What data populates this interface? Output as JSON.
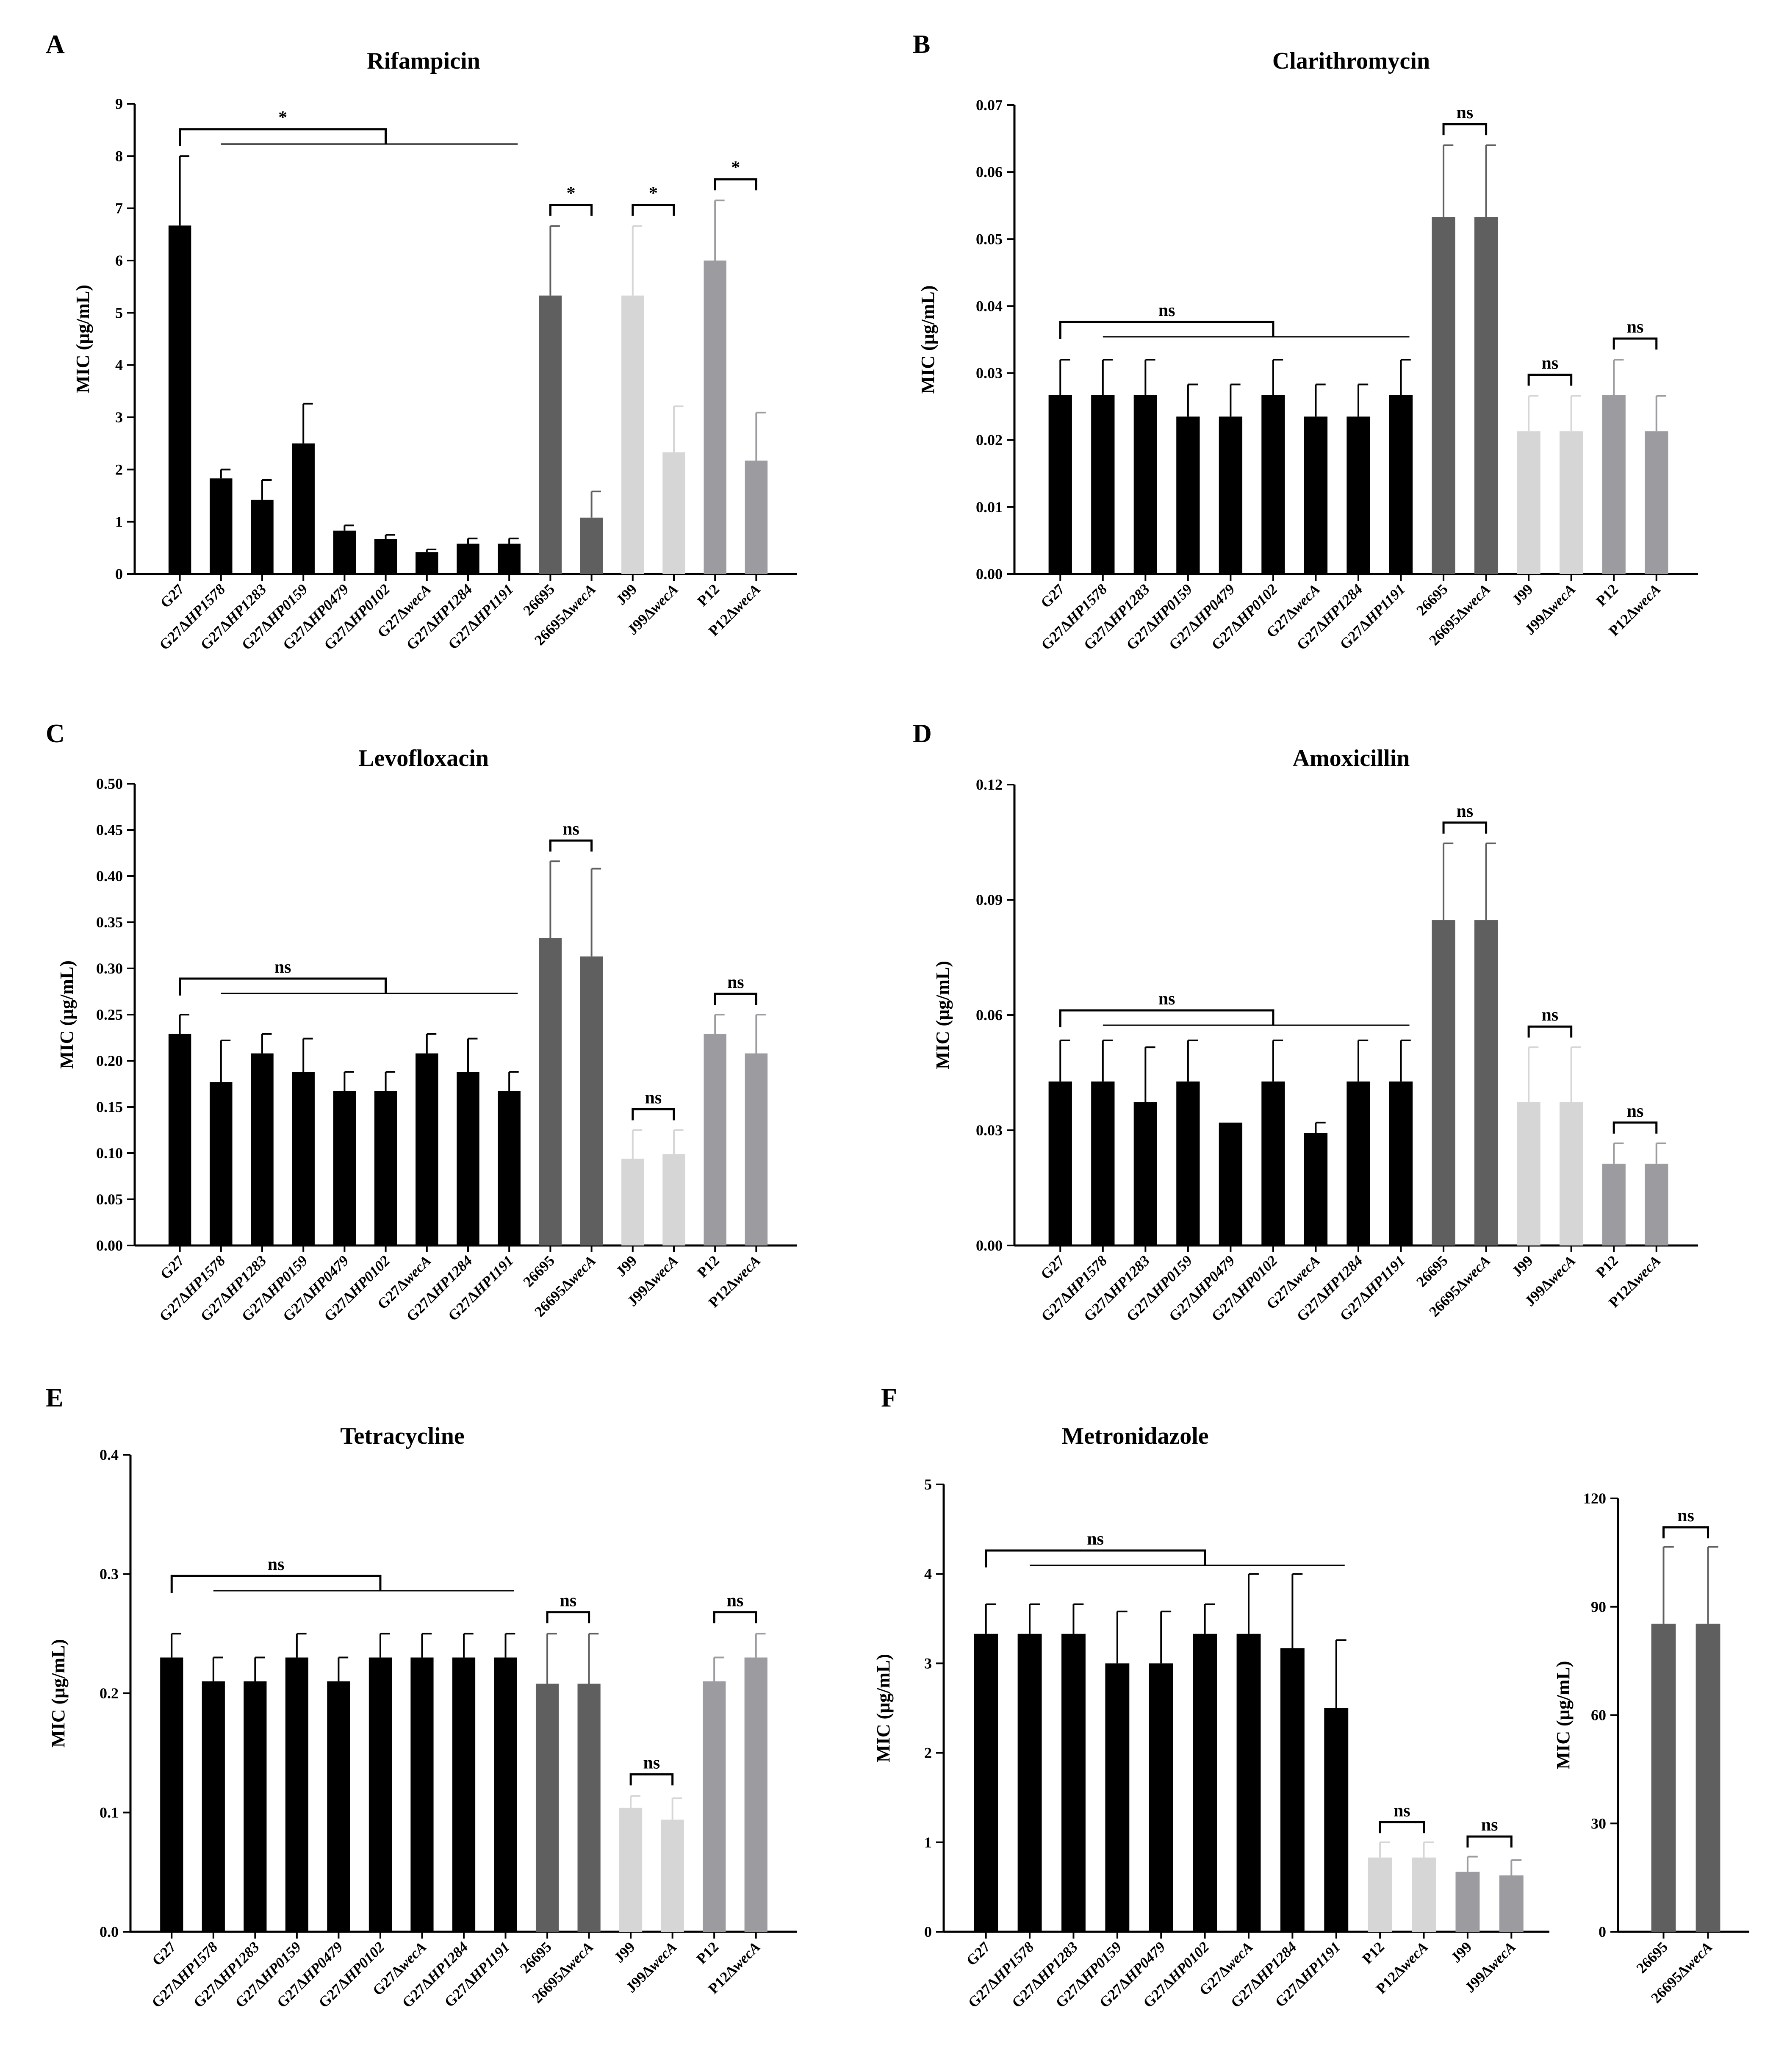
{
  "colors": {
    "black": "#000000",
    "dark_gray": "#5f5f5f",
    "light_gray": "#d6d6d6",
    "mid_gray": "#9b9ba0"
  },
  "chart_data": [
    {
      "letter": "A",
      "title": "Rifampicin",
      "type": "bar",
      "ylabel": "MIC (μg/mL)",
      "ylim": [
        0,
        9
      ],
      "yticks": [
        "0",
        "1",
        "2",
        "3",
        "4",
        "5",
        "6",
        "7",
        "8",
        "9"
      ],
      "categories": [
        "G27",
        "G27ΔHP1578",
        "G27ΔHP1283",
        "G27ΔHP0159",
        "G27ΔHP0479",
        "G27ΔHP0102",
        "G27ΔwecA",
        "G27ΔHP1284",
        "G27ΔHP1191",
        "26695",
        "26695ΔwecA",
        "J99",
        "J99ΔwecA",
        "P12",
        "P12ΔwecA"
      ],
      "groups": [
        9,
        2,
        2,
        2
      ],
      "group_colors": [
        "#000000",
        "#5f5f5f",
        "#d6d6d6",
        "#9b9ba0"
      ],
      "values": [
        6.67,
        1.83,
        1.42,
        2.5,
        0.83,
        0.67,
        0.42,
        0.58,
        0.58,
        5.33,
        1.08,
        5.33,
        2.33,
        6.0,
        2.17
      ],
      "errors": [
        1.33,
        0.17,
        0.38,
        0.76,
        0.1,
        0.08,
        0.05,
        0.1,
        0.1,
        1.33,
        0.5,
        1.33,
        0.88,
        1.15,
        0.92
      ],
      "comparisons": [
        {
          "type": "multi",
          "label": "*"
        },
        {
          "from": 9,
          "to": 10,
          "label": "*"
        },
        {
          "from": 11,
          "to": 12,
          "label": "*"
        },
        {
          "from": 13,
          "to": 14,
          "label": "*"
        }
      ]
    },
    {
      "letter": "B",
      "title": "Clarithromycin",
      "type": "bar",
      "ylabel": "MIC (μg/mL)",
      "ylim": [
        0,
        0.07
      ],
      "yticks": [
        "0.00",
        "0.01",
        "0.02",
        "0.03",
        "0.04",
        "0.05",
        "0.06",
        "0.07"
      ],
      "categories": [
        "G27",
        "G27ΔHP1578",
        "G27ΔHP1283",
        "G27ΔHP0159",
        "G27ΔHP0479",
        "G27ΔHP0102",
        "G27ΔwecA",
        "G27ΔHP1284",
        "G27ΔHP1191",
        "26695",
        "26695ΔwecA",
        "J99",
        "J99ΔwecA",
        "P12",
        "P12ΔwecA"
      ],
      "groups": [
        9,
        2,
        2,
        2
      ],
      "group_colors": [
        "#000000",
        "#5f5f5f",
        "#d6d6d6",
        "#9b9ba0"
      ],
      "values": [
        0.0267,
        0.0267,
        0.0267,
        0.0235,
        0.0235,
        0.0267,
        0.0235,
        0.0235,
        0.0267,
        0.0533,
        0.0533,
        0.0213,
        0.0213,
        0.0267,
        0.0213
      ],
      "errors": [
        0.0053,
        0.0053,
        0.0053,
        0.0048,
        0.0048,
        0.0053,
        0.0048,
        0.0048,
        0.0053,
        0.0107,
        0.0107,
        0.0053,
        0.0053,
        0.0053,
        0.0053
      ],
      "comparisons": [
        {
          "type": "multi",
          "label": "ns"
        },
        {
          "from": 9,
          "to": 10,
          "label": "ns"
        },
        {
          "from": 11,
          "to": 12,
          "label": "ns"
        },
        {
          "from": 13,
          "to": 14,
          "label": "ns"
        }
      ]
    },
    {
      "letter": "C",
      "title": "Levofloxacin",
      "type": "bar",
      "ylabel": "MIC (μg/mL)",
      "ylim": [
        0,
        0.5
      ],
      "yticks": [
        "0.00",
        "0.05",
        "0.10",
        "0.15",
        "0.20",
        "0.25",
        "0.30",
        "0.35",
        "0.40",
        "0.45",
        "0.50"
      ],
      "categories": [
        "G27",
        "G27ΔHP1578",
        "G27ΔHP1283",
        "G27ΔHP0159",
        "G27ΔHP0479",
        "G27ΔHP0102",
        "G27ΔwecA",
        "G27ΔHP1284",
        "G27ΔHP1191",
        "26695",
        "26695ΔwecA",
        "J99",
        "J99ΔwecA",
        "P12",
        "P12ΔwecA"
      ],
      "groups": [
        9,
        2,
        2,
        2
      ],
      "group_colors": [
        "#000000",
        "#5f5f5f",
        "#d6d6d6",
        "#9b9ba0"
      ],
      "values": [
        0.229,
        0.177,
        0.208,
        0.188,
        0.167,
        0.167,
        0.208,
        0.188,
        0.167,
        0.333,
        0.313,
        0.094,
        0.099,
        0.229,
        0.208
      ],
      "errors": [
        0.021,
        0.045,
        0.021,
        0.036,
        0.021,
        0.021,
        0.021,
        0.036,
        0.021,
        0.083,
        0.095,
        0.031,
        0.026,
        0.021,
        0.042
      ],
      "comparisons": [
        {
          "type": "multi",
          "label": "ns"
        },
        {
          "from": 9,
          "to": 10,
          "label": "ns"
        },
        {
          "from": 11,
          "to": 12,
          "label": "ns"
        },
        {
          "from": 13,
          "to": 14,
          "label": "ns"
        }
      ]
    },
    {
      "letter": "D",
      "title": "Amoxicillin",
      "type": "bar",
      "ylabel": "MIC (μg/mL)",
      "ylim": [
        0,
        0.12
      ],
      "yticks": [
        "0.00",
        "0.03",
        "0.06",
        "0.09",
        "0.12"
      ],
      "categories": [
        "G27",
        "G27ΔHP1578",
        "G27ΔHP1283",
        "G27ΔHP0159",
        "G27ΔHP0479",
        "G27ΔHP0102",
        "G27ΔwecA",
        "G27ΔHP1284",
        "G27ΔHP1191",
        "26695",
        "26695ΔwecA",
        "J99",
        "J99ΔwecA",
        "P12",
        "P12ΔwecA"
      ],
      "groups": [
        9,
        2,
        2,
        2
      ],
      "group_colors": [
        "#000000",
        "#5f5f5f",
        "#d6d6d6",
        "#9b9ba0"
      ],
      "values": [
        0.0427,
        0.0427,
        0.0373,
        0.0427,
        0.032,
        0.0427,
        0.0293,
        0.0427,
        0.0427,
        0.0847,
        0.0847,
        0.0373,
        0.0373,
        0.0213,
        0.0213
      ],
      "errors": [
        0.0107,
        0.0107,
        0.0143,
        0.0107,
        0,
        0.0107,
        0.0027,
        0.0107,
        0.0107,
        0.02,
        0.02,
        0.0143,
        0.0143,
        0.0053,
        0.0053
      ],
      "comparisons": [
        {
          "type": "multi",
          "label": "ns"
        },
        {
          "from": 9,
          "to": 10,
          "label": "ns"
        },
        {
          "from": 11,
          "to": 12,
          "label": "ns"
        },
        {
          "from": 13,
          "to": 14,
          "label": "ns"
        }
      ]
    },
    {
      "letter": "E",
      "title": "Tetracycline",
      "type": "bar",
      "ylabel": "MIC (μg/mL)",
      "ylim": [
        0,
        0.4
      ],
      "yticks": [
        "0.0",
        "0.1",
        "0.2",
        "0.3",
        "0.4"
      ],
      "categories": [
        "G27",
        "G27ΔHP1578",
        "G27ΔHP1283",
        "G27ΔHP0159",
        "G27ΔHP0479",
        "G27ΔHP0102",
        "G27ΔwecA",
        "G27ΔHP1284",
        "G27ΔHP1191",
        "26695",
        "26695ΔwecA",
        "J99",
        "J99ΔwecA",
        "P12",
        "P12ΔwecA"
      ],
      "groups": [
        9,
        2,
        2,
        2
      ],
      "group_colors": [
        "#000000",
        "#5f5f5f",
        "#d6d6d6",
        "#9b9ba0"
      ],
      "values": [
        0.23,
        0.21,
        0.21,
        0.23,
        0.21,
        0.23,
        0.23,
        0.23,
        0.23,
        0.208,
        0.208,
        0.104,
        0.094,
        0.21,
        0.23
      ],
      "errors": [
        0.02,
        0.02,
        0.02,
        0.02,
        0.02,
        0.02,
        0.02,
        0.02,
        0.02,
        0.042,
        0.042,
        0.01,
        0.018,
        0.02,
        0.02
      ],
      "comparisons": [
        {
          "type": "multi",
          "label": "ns"
        },
        {
          "from": 9,
          "to": 10,
          "label": "ns"
        },
        {
          "from": 11,
          "to": 12,
          "label": "ns"
        },
        {
          "from": 13,
          "to": 14,
          "label": "ns"
        }
      ]
    },
    {
      "letter": "F",
      "title": "Metronidazole",
      "type": "bar",
      "ylabel": "MIC (μg/mL)",
      "ylim": [
        0,
        5
      ],
      "yticks": [
        "0",
        "1",
        "2",
        "3",
        "4",
        "5"
      ],
      "categories": [
        "G27",
        "G27ΔHP1578",
        "G27ΔHP1283",
        "G27ΔHP0159",
        "G27ΔHP0479",
        "G27ΔHP0102",
        "G27ΔwecA",
        "G27ΔHP1284",
        "G27ΔHP1191",
        "P12",
        "P12ΔwecA",
        "J99",
        "J99ΔwecA"
      ],
      "groups": [
        9,
        2,
        2
      ],
      "group_colors": [
        "#000000",
        "#d6d6d6",
        "#9b9ba0"
      ],
      "values": [
        3.33,
        3.33,
        3.33,
        3.0,
        3.0,
        3.33,
        3.33,
        3.17,
        2.5,
        0.83,
        0.83,
        0.67,
        0.63
      ],
      "errors": [
        0.33,
        0.33,
        0.33,
        0.58,
        0.58,
        0.33,
        0.67,
        0.83,
        0.76,
        0.17,
        0.17,
        0.17,
        0.17
      ],
      "comparisons": [
        {
          "type": "multi",
          "label": "ns"
        },
        {
          "from": 9,
          "to": 10,
          "label": "ns"
        },
        {
          "from": 11,
          "to": 12,
          "label": "ns"
        }
      ]
    },
    {
      "letter": "",
      "title": "",
      "type": "bar",
      "ylabel": "MIC (μg/mL)",
      "ylim": [
        0,
        120
      ],
      "yticks": [
        "0",
        "30",
        "60",
        "90",
        "120"
      ],
      "categories": [
        "26695",
        "26695ΔwecA"
      ],
      "groups": [
        2
      ],
      "group_colors": [
        "#5f5f5f"
      ],
      "values": [
        85.3,
        85.3
      ],
      "errors": [
        21.3,
        21.3
      ],
      "comparisons": [
        {
          "from": 0,
          "to": 1,
          "label": "ns"
        }
      ]
    }
  ]
}
